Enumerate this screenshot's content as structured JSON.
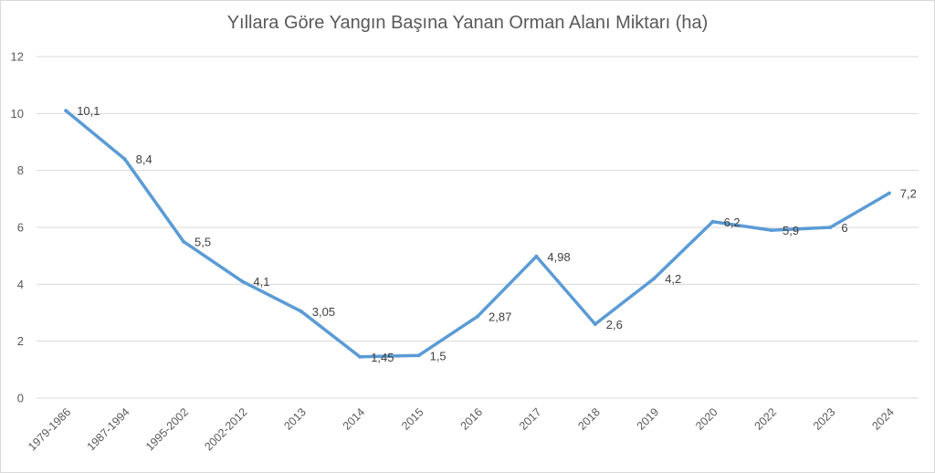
{
  "chart_data": {
    "type": "line",
    "title": "Yıllara Göre Yangın Başına Yanan Orman Alanı Miktarı (ha)",
    "xlabel": "",
    "ylabel": "",
    "ylim": [
      0,
      12
    ],
    "yticks": [
      0,
      2,
      4,
      6,
      8,
      10,
      12
    ],
    "ytick_labels": [
      "0",
      "2",
      "4",
      "6",
      "8",
      "10",
      "12"
    ],
    "grid": true,
    "legend": "none",
    "categories": [
      "1979-1986",
      "1987-1994",
      "1995-2002",
      "2002-2012",
      "2013",
      "2014",
      "2015",
      "2016",
      "2017",
      "2018",
      "2019",
      "2020",
      "2022",
      "2023",
      "2024"
    ],
    "series": [
      {
        "color": "#5b9bd5",
        "values": [
          10.1,
          8.4,
          5.5,
          4.1,
          3.05,
          1.45,
          1.5,
          2.87,
          4.98,
          2.6,
          4.2,
          6.2,
          5.9,
          6,
          7.2
        ],
        "data_labels": [
          "10,1",
          "8,4",
          "5,5",
          "4,1",
          "3,05",
          "1,45",
          "1,5",
          "2,87",
          "4,98",
          "2,6",
          "4,2",
          "6,2",
          "5,9",
          "6",
          "7,2"
        ]
      }
    ]
  }
}
